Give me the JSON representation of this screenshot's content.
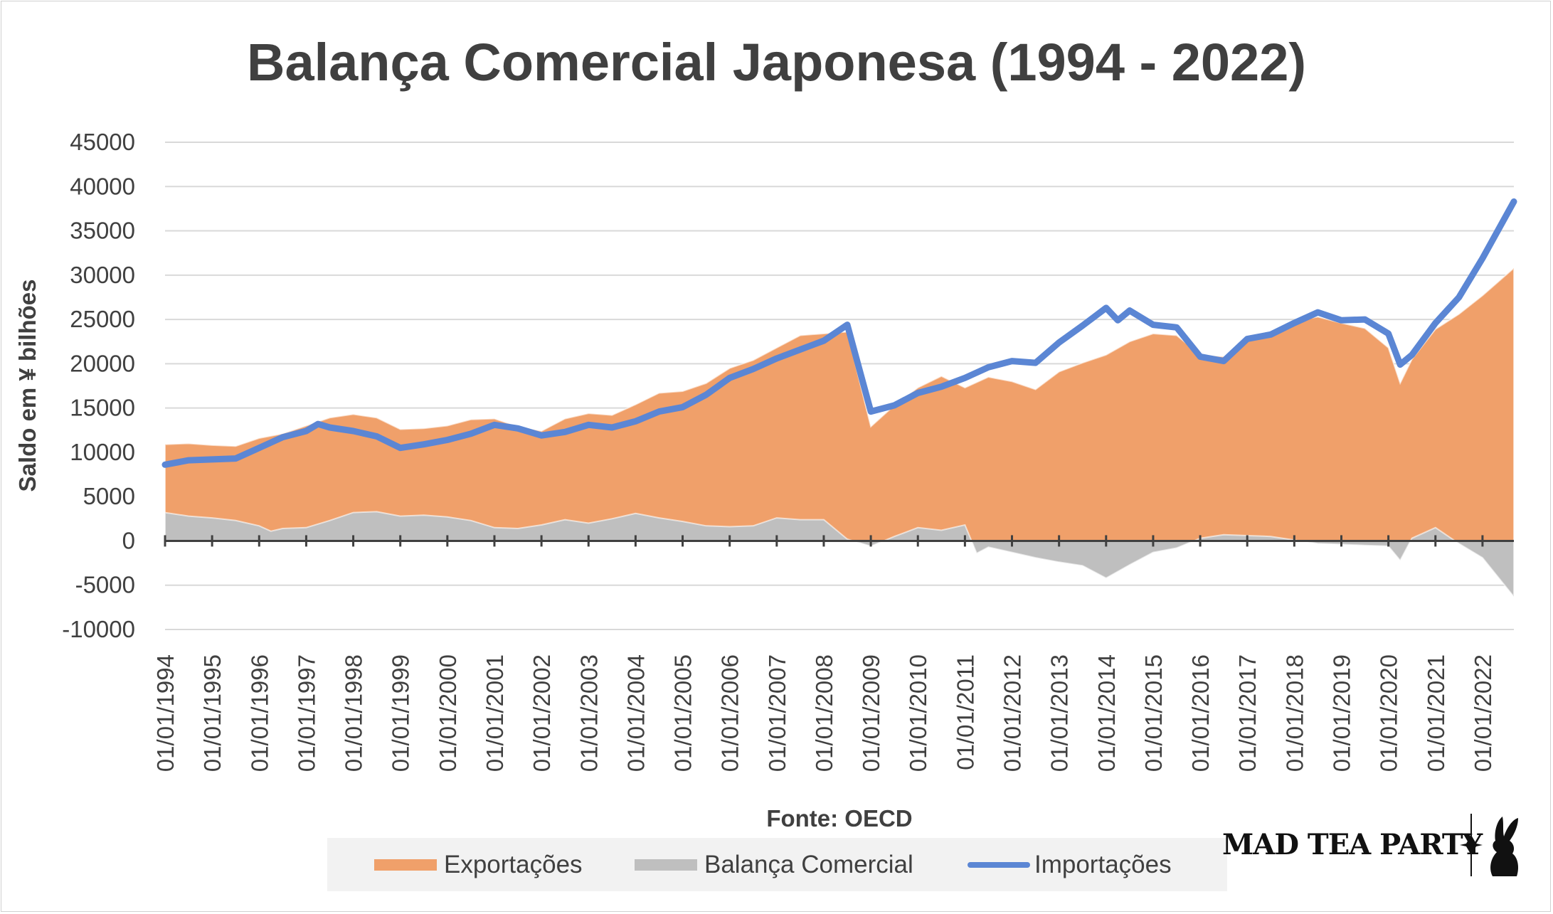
{
  "chart_data": {
    "type": "area",
    "title": "Balança Comercial Japonesa (1994 - 2022)",
    "xlabel": "Fonte: OECD",
    "ylabel": "Saldo em ¥ bilhões",
    "ylim": [
      -10000,
      45000
    ],
    "yticks": [
      45000,
      40000,
      35000,
      30000,
      25000,
      20000,
      15000,
      10000,
      5000,
      0,
      -5000,
      -10000
    ],
    "grid": true,
    "legend_position": "bottom",
    "x_tick_labels": [
      "01/01/1994",
      "01/01/1995",
      "01/01/1996",
      "01/01/1997",
      "01/01/1998",
      "01/01/1999",
      "01/01/2000",
      "01/01/2001",
      "01/01/2002",
      "01/01/2003",
      "01/01/2004",
      "01/01/2005",
      "01/01/2006",
      "01/01/2007",
      "01/01/2008",
      "01/01/2009",
      "01/01/2010",
      "01/01/2011",
      "01/01/2012",
      "01/01/2013",
      "01/01/2014",
      "01/01/2015",
      "01/01/2016",
      "01/01/2017",
      "01/01/2018",
      "01/01/2019",
      "01/01/2020",
      "01/01/2021",
      "01/01/2022"
    ],
    "series": [
      {
        "name": "Exportações",
        "style": "area",
        "color": "#f0a06a",
        "points": [
          [
            "1994-01",
            10900
          ],
          [
            "1994-07",
            11000
          ],
          [
            "1995-01",
            10800
          ],
          [
            "1995-07",
            10700
          ],
          [
            "1996-01",
            11600
          ],
          [
            "1996-07",
            12100
          ],
          [
            "1997-01",
            13000
          ],
          [
            "1997-07",
            13900
          ],
          [
            "1998-01",
            14300
          ],
          [
            "1998-07",
            13900
          ],
          [
            "1999-01",
            12600
          ],
          [
            "1999-07",
            12700
          ],
          [
            "2000-01",
            13000
          ],
          [
            "2000-07",
            13700
          ],
          [
            "2001-01",
            13800
          ],
          [
            "2001-07",
            12900
          ],
          [
            "2002-01",
            12400
          ],
          [
            "2002-07",
            13800
          ],
          [
            "2003-01",
            14400
          ],
          [
            "2003-07",
            14200
          ],
          [
            "2004-01",
            15400
          ],
          [
            "2004-07",
            16700
          ],
          [
            "2005-01",
            16900
          ],
          [
            "2005-07",
            17800
          ],
          [
            "2006-01",
            19500
          ],
          [
            "2006-07",
            20400
          ],
          [
            "2007-01",
            21800
          ],
          [
            "2007-07",
            23200
          ],
          [
            "2008-01",
            23400
          ],
          [
            "2008-07",
            23600
          ],
          [
            "2009-01",
            12900
          ],
          [
            "2009-07",
            15300
          ],
          [
            "2010-01",
            17300
          ],
          [
            "2010-07",
            18600
          ],
          [
            "2011-01",
            17300
          ],
          [
            "2011-07",
            18500
          ],
          [
            "2012-01",
            18000
          ],
          [
            "2012-07",
            17100
          ],
          [
            "2013-01",
            19100
          ],
          [
            "2013-07",
            20100
          ],
          [
            "2014-01",
            21000
          ],
          [
            "2014-07",
            22500
          ],
          [
            "2015-01",
            23400
          ],
          [
            "2015-07",
            23200
          ],
          [
            "2016-01",
            21000
          ],
          [
            "2016-07",
            20800
          ],
          [
            "2017-01",
            22700
          ],
          [
            "2017-07",
            23600
          ],
          [
            "2018-01",
            24800
          ],
          [
            "2018-07",
            25300
          ],
          [
            "2019-01",
            24600
          ],
          [
            "2019-07",
            24000
          ],
          [
            "2020-01",
            21800
          ],
          [
            "2020-04",
            17800
          ],
          [
            "2020-07",
            20500
          ],
          [
            "2021-01",
            23900
          ],
          [
            "2021-07",
            25600
          ],
          [
            "2022-01",
            27700
          ],
          [
            "2022-09",
            30800
          ]
        ]
      },
      {
        "name": "Balança Comercial",
        "style": "area",
        "color": "#bfbfbf",
        "points": [
          [
            "1994-01",
            3200
          ],
          [
            "1994-07",
            2800
          ],
          [
            "1995-01",
            2600
          ],
          [
            "1995-07",
            2300
          ],
          [
            "1996-01",
            1700
          ],
          [
            "1996-04",
            1100
          ],
          [
            "1996-07",
            1400
          ],
          [
            "1997-01",
            1500
          ],
          [
            "1997-07",
            2300
          ],
          [
            "1998-01",
            3200
          ],
          [
            "1998-07",
            3300
          ],
          [
            "1999-01",
            2800
          ],
          [
            "1999-07",
            2900
          ],
          [
            "2000-01",
            2700
          ],
          [
            "2000-07",
            2300
          ],
          [
            "2001-01",
            1500
          ],
          [
            "2001-07",
            1400
          ],
          [
            "2002-01",
            1800
          ],
          [
            "2002-07",
            2400
          ],
          [
            "2003-01",
            2000
          ],
          [
            "2003-07",
            2500
          ],
          [
            "2004-01",
            3100
          ],
          [
            "2004-07",
            2600
          ],
          [
            "2005-01",
            2200
          ],
          [
            "2005-07",
            1700
          ],
          [
            "2006-01",
            1600
          ],
          [
            "2006-07",
            1700
          ],
          [
            "2007-01",
            2600
          ],
          [
            "2007-07",
            2400
          ],
          [
            "2008-01",
            2400
          ],
          [
            "2008-07",
            200
          ],
          [
            "2009-01",
            -600
          ],
          [
            "2009-07",
            500
          ],
          [
            "2010-01",
            1500
          ],
          [
            "2010-07",
            1200
          ],
          [
            "2011-01",
            1800
          ],
          [
            "2011-04",
            -1400
          ],
          [
            "2011-07",
            -700
          ],
          [
            "2012-01",
            -1300
          ],
          [
            "2012-07",
            -1900
          ],
          [
            "2013-01",
            -2400
          ],
          [
            "2013-07",
            -2800
          ],
          [
            "2014-01",
            -4200
          ],
          [
            "2014-07",
            -2700
          ],
          [
            "2015-01",
            -1300
          ],
          [
            "2015-07",
            -800
          ],
          [
            "2016-01",
            300
          ],
          [
            "2016-07",
            700
          ],
          [
            "2017-01",
            600
          ],
          [
            "2017-07",
            500
          ],
          [
            "2018-01",
            100
          ],
          [
            "2018-07",
            -300
          ],
          [
            "2019-01",
            -400
          ],
          [
            "2019-07",
            -500
          ],
          [
            "2020-01",
            -600
          ],
          [
            "2020-04",
            -2200
          ],
          [
            "2020-07",
            300
          ],
          [
            "2021-01",
            1500
          ],
          [
            "2021-07",
            -300
          ],
          [
            "2022-01",
            -1900
          ],
          [
            "2022-09",
            -6300
          ]
        ]
      },
      {
        "name": "Importações",
        "style": "line",
        "color": "#5b86d4",
        "points": [
          [
            "1994-01",
            8600
          ],
          [
            "1994-07",
            9100
          ],
          [
            "1995-01",
            9200
          ],
          [
            "1995-07",
            9300
          ],
          [
            "1996-01",
            10500
          ],
          [
            "1996-07",
            11700
          ],
          [
            "1997-01",
            12400
          ],
          [
            "1997-04",
            13200
          ],
          [
            "1997-07",
            12800
          ],
          [
            "1998-01",
            12400
          ],
          [
            "1998-07",
            11800
          ],
          [
            "1999-01",
            10500
          ],
          [
            "1999-07",
            10900
          ],
          [
            "2000-01",
            11400
          ],
          [
            "2000-07",
            12100
          ],
          [
            "2001-01",
            13100
          ],
          [
            "2001-07",
            12700
          ],
          [
            "2002-01",
            11900
          ],
          [
            "2002-07",
            12300
          ],
          [
            "2003-01",
            13100
          ],
          [
            "2003-07",
            12800
          ],
          [
            "2004-01",
            13500
          ],
          [
            "2004-07",
            14600
          ],
          [
            "2005-01",
            15100
          ],
          [
            "2005-07",
            16500
          ],
          [
            "2006-01",
            18400
          ],
          [
            "2006-07",
            19400
          ],
          [
            "2007-01",
            20600
          ],
          [
            "2007-07",
            21600
          ],
          [
            "2008-01",
            22600
          ],
          [
            "2008-07",
            24400
          ],
          [
            "2009-01",
            14600
          ],
          [
            "2009-07",
            15300
          ],
          [
            "2010-01",
            16700
          ],
          [
            "2010-07",
            17400
          ],
          [
            "2011-01",
            18400
          ],
          [
            "2011-07",
            19600
          ],
          [
            "2012-01",
            20300
          ],
          [
            "2012-07",
            20100
          ],
          [
            "2013-01",
            22400
          ],
          [
            "2013-07",
            24300
          ],
          [
            "2014-01",
            26300
          ],
          [
            "2014-04",
            24900
          ],
          [
            "2014-07",
            26000
          ],
          [
            "2015-01",
            24400
          ],
          [
            "2015-07",
            24100
          ],
          [
            "2016-01",
            20800
          ],
          [
            "2016-07",
            20300
          ],
          [
            "2017-01",
            22800
          ],
          [
            "2017-07",
            23300
          ],
          [
            "2018-01",
            24600
          ],
          [
            "2018-07",
            25800
          ],
          [
            "2019-01",
            24900
          ],
          [
            "2019-07",
            25000
          ],
          [
            "2020-01",
            23400
          ],
          [
            "2020-04",
            19900
          ],
          [
            "2020-07",
            21000
          ],
          [
            "2021-01",
            24600
          ],
          [
            "2021-07",
            27500
          ],
          [
            "2022-01",
            31900
          ],
          [
            "2022-09",
            38300
          ]
        ]
      }
    ]
  },
  "legend": {
    "items": [
      {
        "label": "Exportações",
        "color": "#f0a06a"
      },
      {
        "label": "Balança Comercial",
        "color": "#bfbfbf"
      },
      {
        "label": "Importações",
        "color": "#5b86d4"
      }
    ]
  },
  "logo": {
    "text": "MAD TEA PARTY",
    "icon": "rabbit-silhouette-icon"
  }
}
